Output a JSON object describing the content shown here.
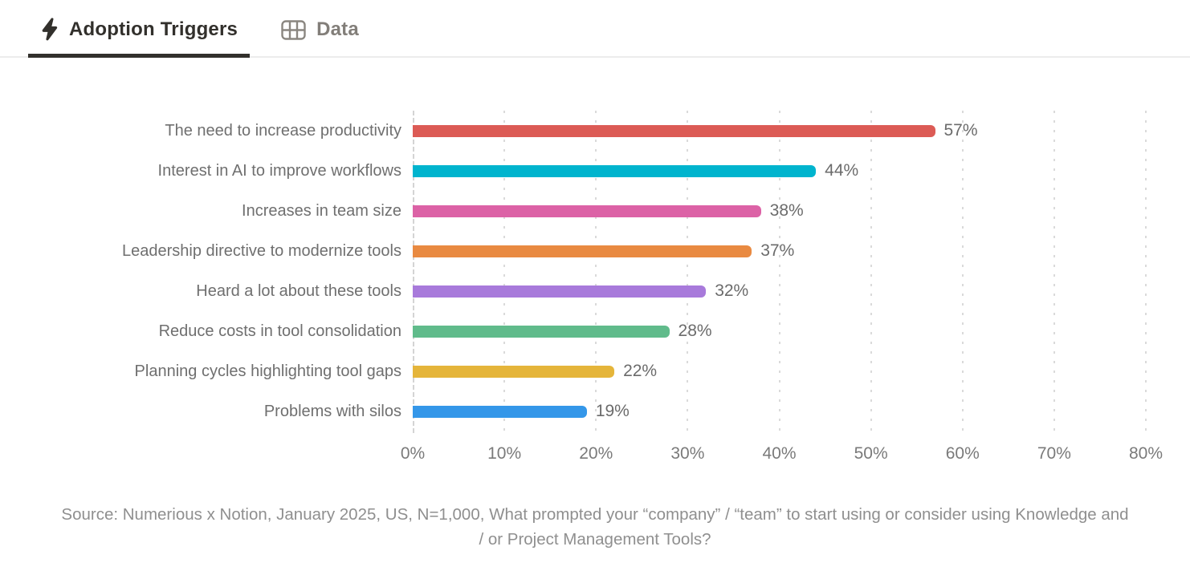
{
  "tabs": [
    {
      "label": "Adoption Triggers",
      "icon": "lightning-icon",
      "active": true
    },
    {
      "label": "Data",
      "icon": "table-icon",
      "active": false
    }
  ],
  "chart_data": {
    "type": "bar",
    "orientation": "horizontal",
    "title": "",
    "categories": [
      "The need to increase productivity",
      "Interest in AI to improve workflows",
      "Increases in team size",
      "Leadership directive to modernize tools",
      "Heard a lot about these tools",
      "Reduce costs in tool consolidation",
      "Planning cycles highlighting tool gaps",
      "Problems with silos"
    ],
    "values": [
      57,
      44,
      38,
      37,
      32,
      28,
      22,
      19
    ],
    "value_labels": [
      "57%",
      "44%",
      "38%",
      "37%",
      "32%",
      "28%",
      "22%",
      "19%"
    ],
    "bar_colors": [
      "#DC5B55",
      "#00B4CE",
      "#DC62A6",
      "#E98A41",
      "#A87ADB",
      "#60BB8B",
      "#E5B53A",
      "#3497E9"
    ],
    "xlim": [
      0,
      80
    ],
    "x_ticks": [
      0,
      10,
      20,
      30,
      40,
      50,
      60,
      70,
      80
    ],
    "x_tick_labels": [
      "0%",
      "10%",
      "20%",
      "30%",
      "40%",
      "50%",
      "60%",
      "70%",
      "80%"
    ],
    "grid": "vertical-dotted",
    "legend": "none"
  },
  "source": {
    "text": "Source: Numerious x Notion, January 2025, US, N=1,000, What prompted your “company” / “team” to start using or consider using Knowledge and / or Project Management Tools?"
  },
  "colors": {
    "active_tab": "#32302C",
    "inactive_tab": "#827E79",
    "category_label": "#6F6F6F",
    "value_label": "#6B6B6B",
    "tick_label": "#7A7A7A",
    "source_text": "#8F8F8F",
    "grid": "#DADADA",
    "tab_border": "#ECECEC"
  }
}
